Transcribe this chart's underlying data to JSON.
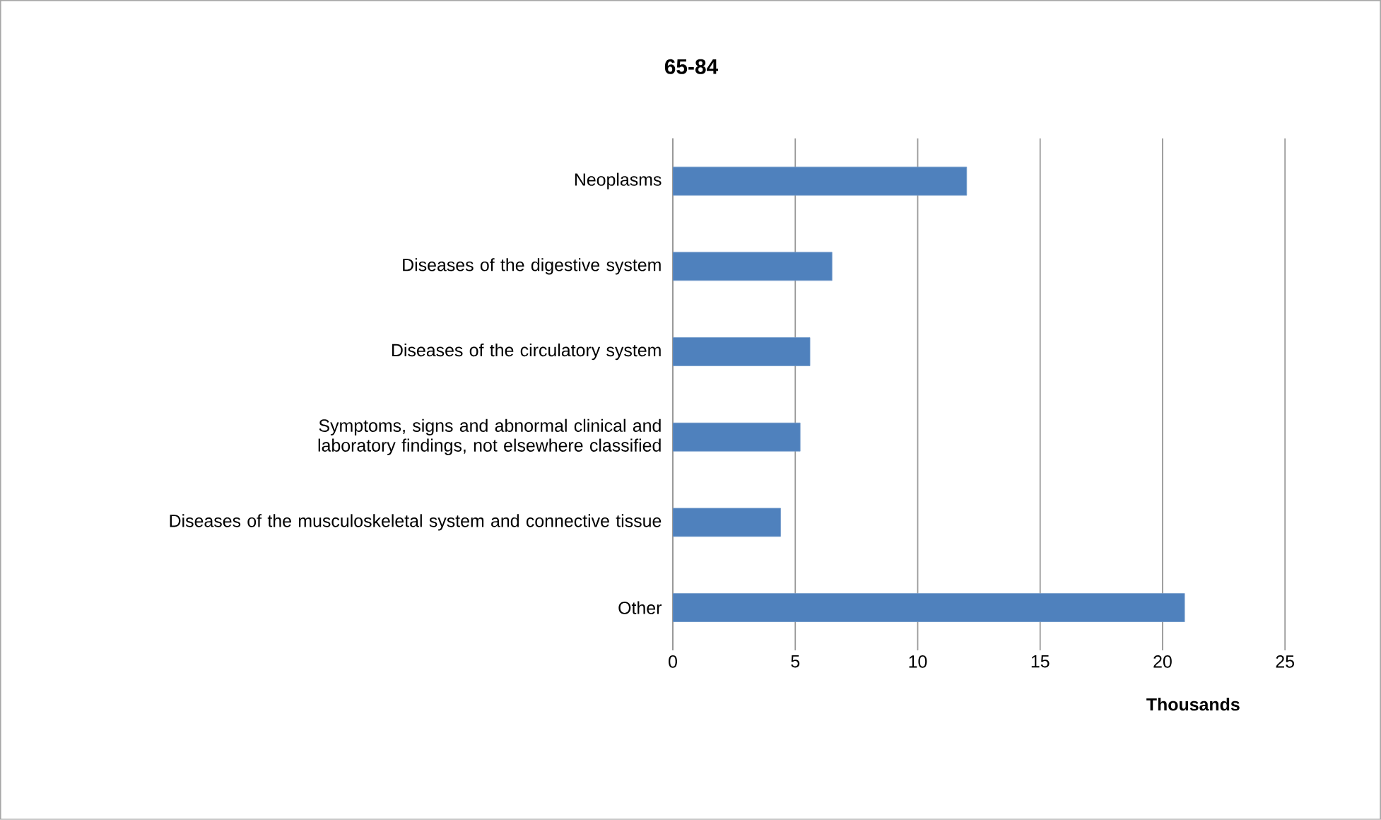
{
  "chart_data": {
    "type": "bar",
    "orientation": "horizontal",
    "title": "65-84",
    "xlabel": "Thousands",
    "categories": [
      "Neoplasms",
      "Diseases of the digestive system",
      "Diseases of the circulatory system",
      "Symptoms, signs and abnormal clinical and laboratory findings, not elsewhere classified",
      "Diseases of the musculoskeletal system and connective tissue",
      "Other"
    ],
    "values": [
      12.0,
      6.5,
      5.6,
      5.2,
      4.4,
      20.9
    ],
    "color": "#4f81bd",
    "xlim": [
      0,
      25
    ],
    "xticks": [
      0,
      5,
      10,
      15,
      20,
      25
    ],
    "grid": "x"
  }
}
